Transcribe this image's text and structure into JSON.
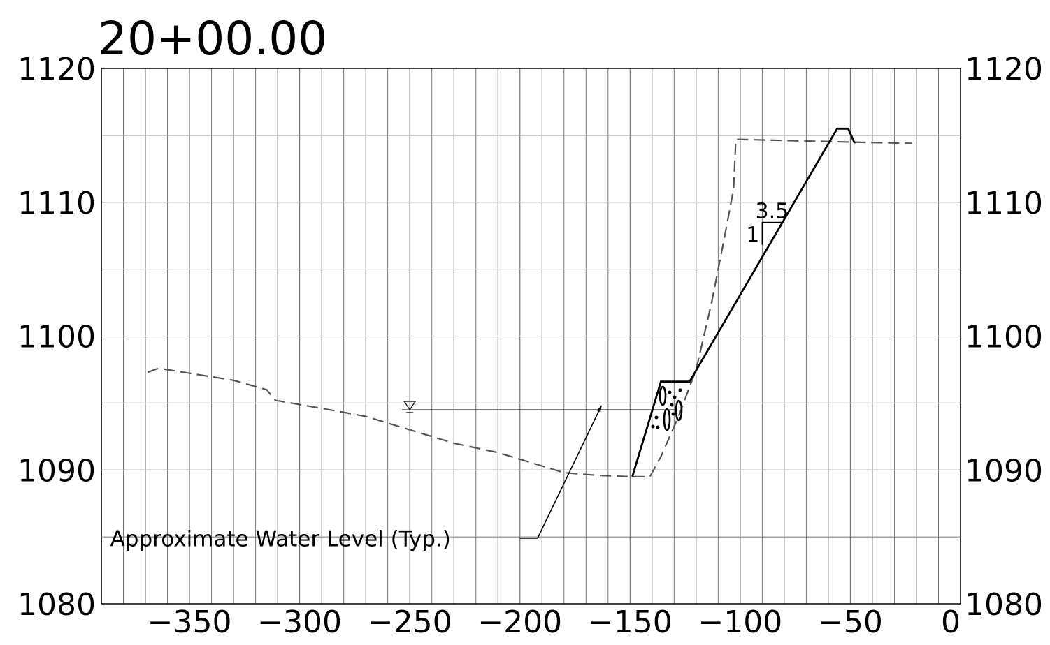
{
  "chart_data": {
    "type": "line",
    "title": "20+00.00",
    "xlabel": "",
    "ylabel": "",
    "xlim": [
      -390,
      0
    ],
    "ylim": [
      1080,
      1120
    ],
    "grid": true,
    "x_minor_step": 10,
    "y_minor_step": 5,
    "x_tick_labels": [
      {
        "value": -350,
        "label": "−350"
      },
      {
        "value": -300,
        "label": "−300"
      },
      {
        "value": -250,
        "label": "−250"
      },
      {
        "value": -200,
        "label": "−200"
      },
      {
        "value": -150,
        "label": "−150"
      },
      {
        "value": -100,
        "label": "−100"
      },
      {
        "value": -50,
        "label": "−50"
      },
      {
        "value": 0,
        "label": "0"
      }
    ],
    "y_tick_labels": [
      {
        "value": 1080,
        "label": "1080"
      },
      {
        "value": 1090,
        "label": "1090"
      },
      {
        "value": 1100,
        "label": "1100"
      },
      {
        "value": 1110,
        "label": "1110"
      },
      {
        "value": 1120,
        "label": "1120"
      }
    ],
    "series": [
      {
        "style": "dashed",
        "color": "#555555",
        "points": [
          [
            -369,
            1097.3
          ],
          [
            -364,
            1097.6
          ],
          [
            -330,
            1096.7
          ],
          [
            -315,
            1096.0
          ],
          [
            -311,
            1095.2
          ],
          [
            -290,
            1094.6
          ],
          [
            -270,
            1094.0
          ],
          [
            -250,
            1093.0
          ],
          [
            -230,
            1092.0
          ],
          [
            -210,
            1091.3
          ],
          [
            -190,
            1090.3
          ],
          [
            -180,
            1089.8
          ],
          [
            -165,
            1089.6
          ],
          [
            -150,
            1089.5
          ],
          [
            -141,
            1089.5
          ],
          [
            -136,
            1091.0
          ],
          [
            -128,
            1094.0
          ],
          [
            -120,
            1097.5
          ],
          [
            -113,
            1102.5
          ],
          [
            -107,
            1107.5
          ],
          [
            -103,
            1111.0
          ],
          [
            -102,
            1114.7
          ],
          [
            -50,
            1114.5
          ],
          [
            -22,
            1114.4
          ]
        ]
      },
      {
        "style": "solid",
        "color": "#000000",
        "points": [
          [
            -149,
            1089.5
          ],
          [
            -136,
            1096.6
          ],
          [
            -123,
            1096.6
          ],
          [
            -56,
            1115.5
          ],
          [
            -51,
            1115.5
          ],
          [
            -48,
            1114.4
          ]
        ]
      }
    ],
    "water_level": {
      "elevation": 1094.5,
      "x_start": -390,
      "x_end": -130,
      "symbol_x": -250
    },
    "slope_indicator": {
      "x": -90,
      "y": 1108.5,
      "run_label": "3.5",
      "rise_label": "1"
    },
    "annotations": [
      {
        "text": "Approximate Water Level (Typ.)",
        "x": -386,
        "y": 1084.3,
        "leader": [
          [
            -200,
            1084.9
          ],
          [
            -192,
            1084.9
          ],
          [
            -163,
            1094.8
          ]
        ]
      }
    ]
  }
}
